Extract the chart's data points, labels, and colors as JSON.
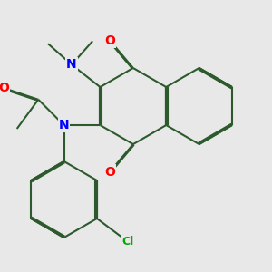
{
  "bg_color": "#e8e8e8",
  "bond_color": "#2d5a2d",
  "line_width": 1.5,
  "atom_colors": {
    "O": "#ff0000",
    "N": "#0000ff",
    "Cl": "#00aa00",
    "C": "#2d5a2d"
  },
  "font_size": 8.5,
  "dbo": 0.055
}
